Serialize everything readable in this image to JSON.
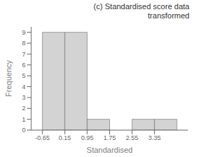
{
  "chart_data": {
    "type": "histogram",
    "title": "(c) Standardised score data\ntransformed",
    "xlabel": "Standardised",
    "ylabel": "Frequency",
    "bins": [
      -0.65,
      0.15,
      0.95,
      1.75,
      2.55,
      3.35,
      4.15
    ],
    "values": [
      9,
      9,
      1,
      0,
      1,
      1
    ],
    "color": "#d3d3d3",
    "xlim": [
      -1.05,
      4.55
    ],
    "xticks": [
      -0.65,
      0.15,
      0.95,
      1.75,
      2.55,
      3.35
    ],
    "ylim": [
      0,
      9.5
    ],
    "yticks": [
      0,
      1,
      2,
      3,
      4,
      5,
      6,
      7,
      8,
      9
    ],
    "grid": false
  }
}
